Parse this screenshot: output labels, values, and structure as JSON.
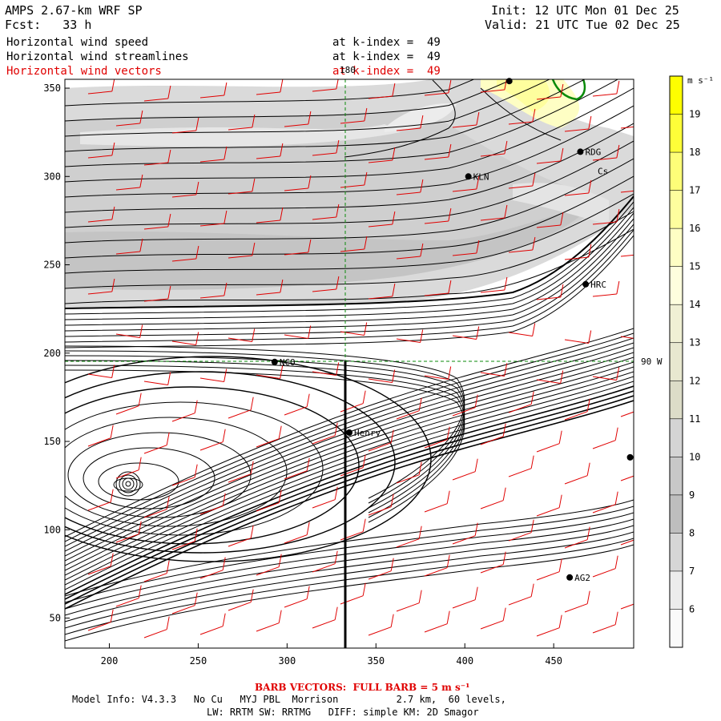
{
  "header": {
    "model": "AMPS 2.67-km WRF SP",
    "fcst": "Fcst:   33 h",
    "init": "Init: 12 UTC Mon 01 Dec 25",
    "valid": "Valid: 21 UTC Tue 02 Dec 25",
    "fields": [
      {
        "name": "Horizontal wind speed",
        "level": "at k-index =  49",
        "color": "#000000"
      },
      {
        "name": "Horizontal wind streamlines",
        "level": "at k-index =  49",
        "color": "#000000"
      },
      {
        "name": "Horizontal wind vectors",
        "level": "at k-index =  49",
        "color": "#e00000"
      }
    ]
  },
  "axes": {
    "x_ticks": [
      "200",
      "250",
      "300",
      "350",
      "400",
      "450"
    ],
    "y_ticks": [
      "350",
      "300",
      "250",
      "200",
      "150",
      "100",
      "50"
    ],
    "x_range": [
      175,
      495
    ],
    "y_range": [
      33,
      355
    ]
  },
  "grid_labels": {
    "meridian": "180",
    "parallel": "90 W"
  },
  "stations": [
    {
      "label": "KLN",
      "x": 402,
      "y": 300
    },
    {
      "label": "RDG",
      "x": 465,
      "y": 314
    },
    {
      "label": "HRC",
      "x": 468,
      "y": 239
    },
    {
      "label": "NCO",
      "x": 293,
      "y": 195
    },
    {
      "label": "Henry",
      "x": 335,
      "y": 155
    },
    {
      "label": "AG2",
      "x": 459,
      "y": 73
    },
    {
      "label": "Cs",
      "x": 472,
      "y": 303
    },
    {
      "label": "",
      "x": 493,
      "y": 141
    },
    {
      "label": "",
      "x": 425,
      "y": 354
    }
  ],
  "colorbar": {
    "units": "m s⁻¹",
    "ticks": [
      "19",
      "18",
      "17",
      "16",
      "15",
      "14",
      "13",
      "12",
      "11",
      "10",
      "9",
      "8",
      "7",
      "6"
    ],
    "colors": [
      "#fefe00",
      "#fefe38",
      "#fefe78",
      "#fefe9e",
      "#fefec4",
      "#fefede",
      "#f0f0d4",
      "#e8e8d0",
      "#dcdcc8",
      "#d4d4d4",
      "#c8c8c8",
      "#bebebe",
      "#d6d6d6",
      "#ececec",
      "#fafafa"
    ]
  },
  "footer": {
    "barb": "BARB VECTORS:  FULL BARB = 5 m s⁻¹",
    "line1": "Model Info: V4.3.3   No Cu   MYJ PBL  Morrison          2.7 km,  60 levels,",
    "line2": "LW: RRTM SW: RRTMG   DIFF: simple KM: 2D Smagor"
  }
}
